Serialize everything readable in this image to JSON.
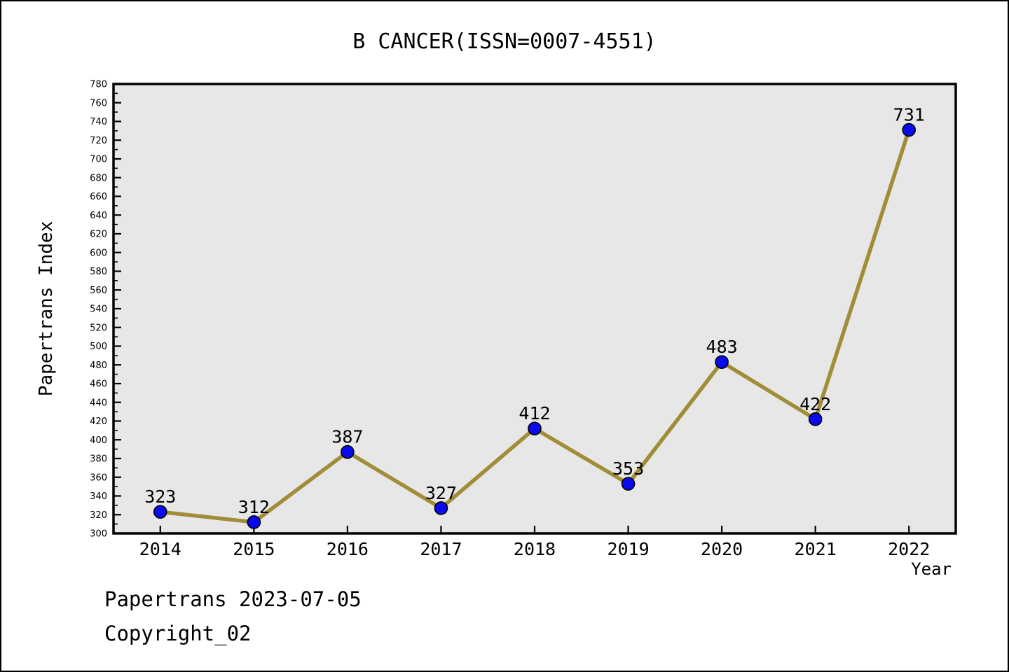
{
  "title": "B CANCER(ISSN=0007-4551)",
  "axes": {
    "x_title": "Year",
    "y_title": "Papertrans Index"
  },
  "footer": {
    "line1": "Papertrans 2023-07-05",
    "line2": "Copyright_02"
  },
  "chart_data": {
    "type": "line",
    "title": "B CANCER(ISSN=0007-4551)",
    "xlabel": "Year",
    "ylabel": "Papertrans Index",
    "categories": [
      "2014",
      "2015",
      "2016",
      "2017",
      "2018",
      "2019",
      "2020",
      "2021",
      "2022"
    ],
    "values": [
      323,
      312,
      387,
      327,
      412,
      353,
      483,
      422,
      731
    ],
    "ylim": [
      300,
      780
    ],
    "ytick_step": 20,
    "yminor_step": 10,
    "grid": false,
    "legend": "none",
    "point_labels_shown": true,
    "colors": {
      "line": "#a18c37",
      "marker_fill": "#0a0aee",
      "marker_edge": "#000000",
      "plot_background": "#e7e7e7",
      "frame": "#000000",
      "text": "#000000"
    }
  }
}
